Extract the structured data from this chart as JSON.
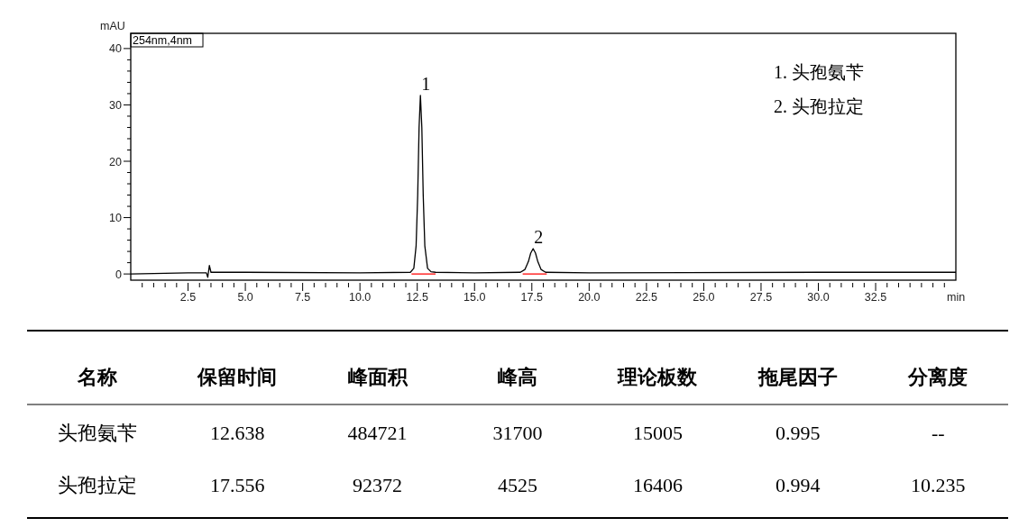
{
  "chart_data": [
    {
      "type": "line",
      "xlabel": "min",
      "ylabel": "mAU",
      "xlim": [
        0,
        36
      ],
      "ylim": [
        -1.1,
        42.7
      ],
      "xticks": [
        {
          "value": 0.5,
          "label": null
        },
        {
          "value": 1,
          "label": null
        },
        {
          "value": 1.5,
          "label": null
        },
        {
          "value": 2,
          "label": null
        },
        {
          "value": 2.5,
          "label": "2.5"
        },
        {
          "value": 3,
          "label": null
        },
        {
          "value": 3.5,
          "label": null
        },
        {
          "value": 4,
          "label": null
        },
        {
          "value": 4.5,
          "label": null
        },
        {
          "value": 5,
          "label": "5.0"
        },
        {
          "value": 5.5,
          "label": null
        },
        {
          "value": 6,
          "label": null
        },
        {
          "value": 6.5,
          "label": null
        },
        {
          "value": 7,
          "label": null
        },
        {
          "value": 7.5,
          "label": "7.5"
        },
        {
          "value": 8,
          "label": null
        },
        {
          "value": 8.5,
          "label": null
        },
        {
          "value": 9,
          "label": null
        },
        {
          "value": 9.5,
          "label": null
        },
        {
          "value": 10,
          "label": "10.0"
        },
        {
          "value": 10.5,
          "label": null
        },
        {
          "value": 11,
          "label": null
        },
        {
          "value": 11.5,
          "label": null
        },
        {
          "value": 12,
          "label": null
        },
        {
          "value": 12.5,
          "label": "12.5"
        },
        {
          "value": 13,
          "label": null
        },
        {
          "value": 13.5,
          "label": null
        },
        {
          "value": 14,
          "label": null
        },
        {
          "value": 14.5,
          "label": null
        },
        {
          "value": 15,
          "label": "15.0"
        },
        {
          "value": 15.5,
          "label": null
        },
        {
          "value": 16,
          "label": null
        },
        {
          "value": 16.5,
          "label": null
        },
        {
          "value": 17,
          "label": null
        },
        {
          "value": 17.5,
          "label": "17.5"
        },
        {
          "value": 18,
          "label": null
        },
        {
          "value": 18.5,
          "label": null
        },
        {
          "value": 19,
          "label": null
        },
        {
          "value": 19.5,
          "label": null
        },
        {
          "value": 20,
          "label": "20.0"
        },
        {
          "value": 20.5,
          "label": null
        },
        {
          "value": 21,
          "label": null
        },
        {
          "value": 21.5,
          "label": null
        },
        {
          "value": 22,
          "label": null
        },
        {
          "value": 22.5,
          "label": "22.5"
        },
        {
          "value": 23,
          "label": null
        },
        {
          "value": 23.5,
          "label": null
        },
        {
          "value": 24,
          "label": null
        },
        {
          "value": 24.5,
          "label": null
        },
        {
          "value": 25,
          "label": "25.0"
        },
        {
          "value": 25.5,
          "label": null
        },
        {
          "value": 26,
          "label": null
        },
        {
          "value": 26.5,
          "label": null
        },
        {
          "value": 27,
          "label": null
        },
        {
          "value": 27.5,
          "label": "27.5"
        },
        {
          "value": 28,
          "label": null
        },
        {
          "value": 28.5,
          "label": null
        },
        {
          "value": 29,
          "label": null
        },
        {
          "value": 29.5,
          "label": null
        },
        {
          "value": 30,
          "label": "30.0"
        },
        {
          "value": 30.5,
          "label": null
        },
        {
          "value": 31,
          "label": null
        },
        {
          "value": 31.5,
          "label": null
        },
        {
          "value": 32,
          "label": null
        },
        {
          "value": 32.5,
          "label": "32.5"
        },
        {
          "value": 33,
          "label": null
        },
        {
          "value": 33.5,
          "label": null
        },
        {
          "value": 34,
          "label": null
        },
        {
          "value": 34.5,
          "label": null
        },
        {
          "value": 35,
          "label": null
        },
        {
          "value": 35.5,
          "label": null
        }
      ],
      "yticks": [
        0,
        {
          "value": 2,
          "label": null
        },
        {
          "value": 4,
          "label": null
        },
        {
          "value": 6,
          "label": null
        },
        {
          "value": 8,
          "label": null
        },
        10,
        {
          "value": 12,
          "label": null
        },
        {
          "value": 14,
          "label": null
        },
        {
          "value": 16,
          "label": null
        },
        {
          "value": 18,
          "label": null
        },
        20,
        {
          "value": 22,
          "label": null
        },
        {
          "value": 24,
          "label": null
        },
        {
          "value": 26,
          "label": null
        },
        {
          "value": 28,
          "label": null
        },
        30,
        {
          "value": 32,
          "label": null
        },
        {
          "value": 34,
          "label": null
        },
        {
          "value": 36,
          "label": null
        },
        {
          "value": 38,
          "label": null
        },
        40
      ],
      "grid": false,
      "marker": "none",
      "line_style": "solid",
      "series": [
        {
          "color": "#000000",
          "x": [
            0,
            2.5,
            3.3,
            3.36,
            3.43,
            3.5,
            5,
            10,
            12.2,
            12.35,
            12.45,
            12.52,
            12.58,
            12.638,
            12.7,
            12.76,
            12.83,
            12.95,
            13.1,
            13.3,
            15,
            17,
            17.2,
            17.35,
            17.45,
            17.556,
            17.66,
            17.76,
            17.9,
            18.1,
            20,
            30,
            36
          ],
          "values": [
            0,
            0.2,
            0.2,
            -0.6,
            1.5,
            0.3,
            0.3,
            0.2,
            0.3,
            1.0,
            5,
            14,
            26,
            31.7,
            26,
            14,
            5,
            1.0,
            0.4,
            0.3,
            0.2,
            0.3,
            0.8,
            2.2,
            3.7,
            4.5,
            3.7,
            2.2,
            0.8,
            0.3,
            0.2,
            0.3,
            0.3
          ]
        },
        {
          "color": "#ff0000",
          "x": [
            12.25,
            13.3,
            null,
            17.1,
            18.15
          ],
          "values": [
            0,
            0,
            null,
            0,
            0
          ]
        }
      ],
      "annotations": [
        "254nm,4nm",
        {
          "text": "1",
          "x": 12.638,
          "y": 31.7
        },
        {
          "text": "2",
          "x": 17.556,
          "y": 4.525
        },
        "1.  头孢氨苄",
        "2.  头孢拉定"
      ]
    },
    {
      "type": "other",
      "categories": [
        "名称",
        "保留时间",
        "峰面积",
        "峰高",
        "理论板数",
        "拖尾因子",
        "分离度"
      ],
      "annotations": [
        "头孢氨苄",
        "12.638",
        "484721",
        "31700",
        "15005",
        "0.995",
        "--",
        "头孢拉定",
        "17.556",
        "92372",
        "4525",
        "16406",
        "0.994",
        "10.235"
      ]
    }
  ]
}
